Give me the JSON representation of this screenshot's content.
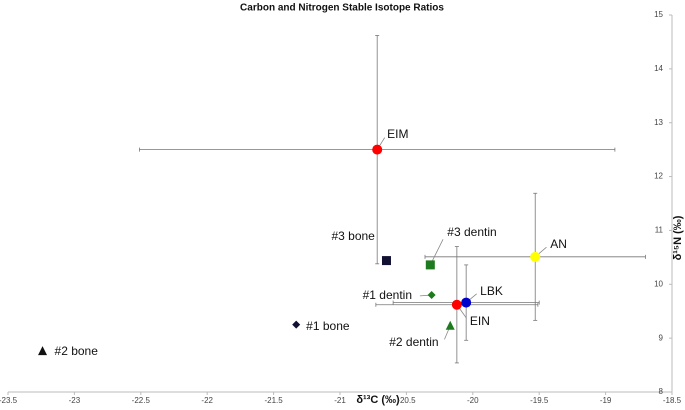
{
  "chart_data": {
    "type": "scatter",
    "title": "Carbon and Nitrogen Stable Isotope Ratios",
    "x_label": "δ¹³C (‰)",
    "y_label": "δ¹⁵N (‰)",
    "xlim": [
      -23.5,
      -18.5
    ],
    "xticks": [
      -23.5,
      -23,
      -22.5,
      -22,
      -21.5,
      -21,
      -20.5,
      -20,
      -19.5,
      -19,
      -18.5
    ],
    "ylim": [
      8,
      15
    ],
    "yticks": [
      8,
      9,
      10,
      11,
      12,
      13,
      14,
      15
    ],
    "series": [
      {
        "name": "EIM",
        "color": "#ff0000",
        "marker": "circle",
        "x": [
          -20.72
        ],
        "y": [
          12.5
        ],
        "xerr": [
          1.79
        ],
        "yerr": [
          2.12
        ]
      },
      {
        "name": "AN",
        "color": "#ffff00",
        "marker": "circle",
        "x": [
          -19.53
        ],
        "y": [
          10.51
        ],
        "xerr": [
          0.83
        ],
        "yerr": [
          1.18
        ]
      },
      {
        "name": "EIN",
        "color": "#ff0000",
        "marker": "circle",
        "x": [
          -20.12
        ],
        "y": [
          9.62
        ],
        "xerr": [
          0.61
        ],
        "yerr": [
          1.08
        ]
      },
      {
        "name": "LBK",
        "color": "#0000cc",
        "marker": "circle",
        "x": [
          -20.05
        ],
        "y": [
          9.66
        ],
        "xerr": [
          0.55
        ],
        "yerr": [
          0.7
        ]
      },
      {
        "name": "#3 bone",
        "color": "#111133",
        "marker": "square",
        "x": [
          -20.65
        ],
        "y": [
          10.44
        ]
      },
      {
        "name": "#3 dentin",
        "color": "#1e7a1e",
        "marker": "square",
        "x": [
          -20.32
        ],
        "y": [
          10.36
        ]
      },
      {
        "name": "#1 dentin",
        "color": "#1e7a1e",
        "marker": "diamond",
        "x": [
          -20.31
        ],
        "y": [
          9.8
        ]
      },
      {
        "name": "#2 dentin",
        "color": "#1e7a1e",
        "marker": "triangle",
        "x": [
          -20.17
        ],
        "y": [
          9.23
        ]
      },
      {
        "name": "#1 bone",
        "color": "#111133",
        "marker": "diamond",
        "x": [
          -21.33
        ],
        "y": [
          9.25
        ]
      },
      {
        "name": "#2 bone",
        "color": "#111111",
        "marker": "triangle",
        "x": [
          -23.24
        ],
        "y": [
          8.76
        ]
      }
    ]
  }
}
